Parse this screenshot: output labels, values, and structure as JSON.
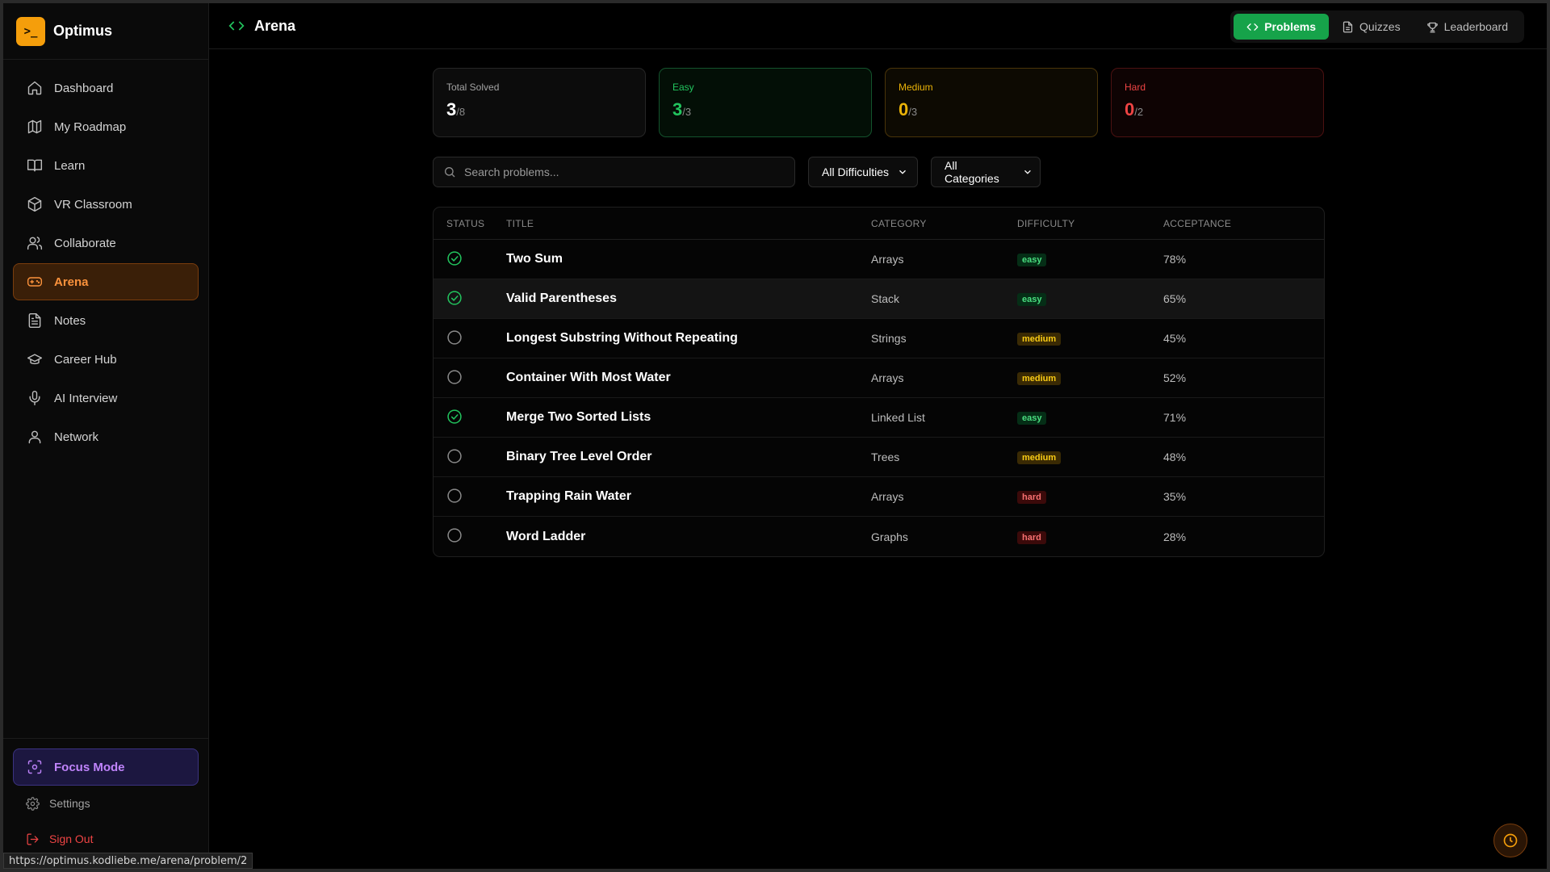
{
  "brand": {
    "logo_text": ">_",
    "name": "Optimus"
  },
  "sidebar": {
    "items": [
      {
        "label": "Dashboard",
        "icon": "home-icon",
        "active": false
      },
      {
        "label": "My Roadmap",
        "icon": "map-icon",
        "active": false
      },
      {
        "label": "Learn",
        "icon": "book-icon",
        "active": false
      },
      {
        "label": "VR Classroom",
        "icon": "cube-icon",
        "active": false
      },
      {
        "label": "Collaborate",
        "icon": "users-icon",
        "active": false
      },
      {
        "label": "Arena",
        "icon": "gamepad-icon",
        "active": true
      },
      {
        "label": "Notes",
        "icon": "notes-icon",
        "active": false
      },
      {
        "label": "Career Hub",
        "icon": "graduation-cap-icon",
        "active": false
      },
      {
        "label": "AI Interview",
        "icon": "microphone-icon",
        "active": false
      },
      {
        "label": "Network",
        "icon": "user-icon",
        "active": false
      }
    ],
    "focus_mode": "Focus Mode",
    "settings": "Settings",
    "sign_out": "Sign Out"
  },
  "header": {
    "title": "Arena",
    "tabs": [
      {
        "label": "Problems",
        "icon": "code-icon",
        "active": true
      },
      {
        "label": "Quizzes",
        "icon": "document-icon",
        "active": false
      },
      {
        "label": "Leaderboard",
        "icon": "trophy-icon",
        "active": false
      }
    ]
  },
  "stats": {
    "total": {
      "label": "Total Solved",
      "value": "3",
      "total": "/8"
    },
    "easy": {
      "label": "Easy",
      "value": "3",
      "total": "/3"
    },
    "medium": {
      "label": "Medium",
      "value": "0",
      "total": "/3"
    },
    "hard": {
      "label": "Hard",
      "value": "0",
      "total": "/2"
    }
  },
  "filters": {
    "search_placeholder": "Search problems...",
    "difficulty": "All Difficulties",
    "category": "All Categories"
  },
  "table": {
    "headers": {
      "status": "STATUS",
      "title": "TITLE",
      "category": "CATEGORY",
      "difficulty": "DIFFICULTY",
      "acceptance": "ACCEPTANCE"
    },
    "rows": [
      {
        "solved": true,
        "title": "Two Sum",
        "category": "Arrays",
        "difficulty": "easy",
        "acceptance": "78%"
      },
      {
        "solved": true,
        "title": "Valid Parentheses",
        "category": "Stack",
        "difficulty": "easy",
        "acceptance": "65%"
      },
      {
        "solved": false,
        "title": "Longest Substring Without Repeating",
        "category": "Strings",
        "difficulty": "medium",
        "acceptance": "45%"
      },
      {
        "solved": false,
        "title": "Container With Most Water",
        "category": "Arrays",
        "difficulty": "medium",
        "acceptance": "52%"
      },
      {
        "solved": true,
        "title": "Merge Two Sorted Lists",
        "category": "Linked List",
        "difficulty": "easy",
        "acceptance": "71%"
      },
      {
        "solved": false,
        "title": "Binary Tree Level Order",
        "category": "Trees",
        "difficulty": "medium",
        "acceptance": "48%"
      },
      {
        "solved": false,
        "title": "Trapping Rain Water",
        "category": "Arrays",
        "difficulty": "hard",
        "acceptance": "35%"
      },
      {
        "solved": false,
        "title": "Word Ladder",
        "category": "Graphs",
        "difficulty": "hard",
        "acceptance": "28%"
      }
    ]
  },
  "status_url": "https://optimus.kodliebe.me/arena/problem/2",
  "colors": {
    "accent_orange": "#fb923c",
    "success_green": "#22c55e",
    "medium_yellow": "#eab308",
    "hard_red": "#ef4444",
    "focus_purple": "#c084fc"
  }
}
